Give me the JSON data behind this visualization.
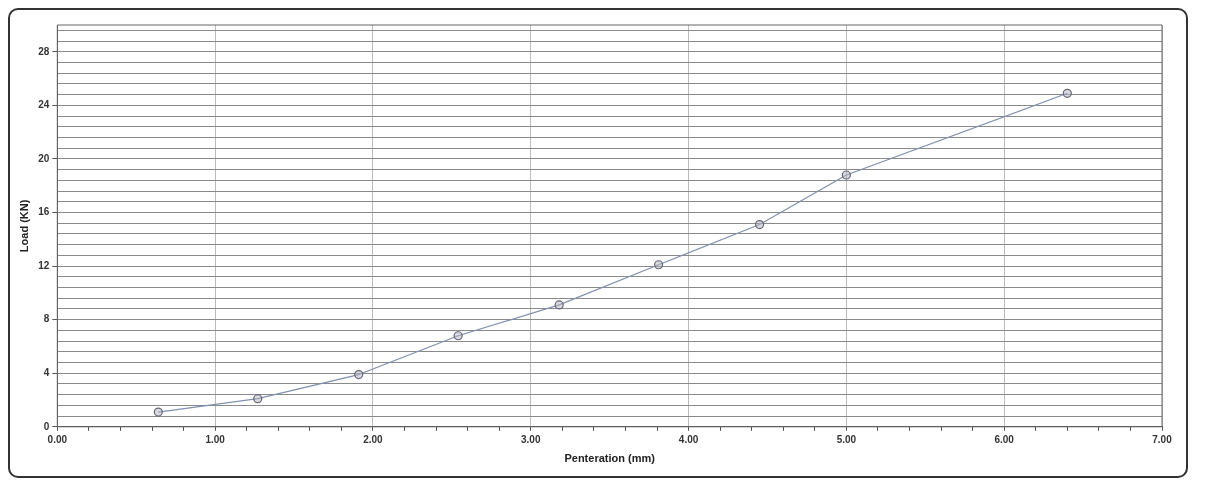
{
  "chart_data": {
    "type": "line",
    "xlabel": "Penteration (mm)",
    "ylabel": "Load (KN)",
    "x": [
      0.64,
      1.27,
      1.91,
      2.54,
      3.18,
      3.81,
      4.45,
      5.0,
      6.4
    ],
    "series": [
      {
        "color": "#7f8fb0",
        "values": [
          1.1,
          2.1,
          3.9,
          6.8,
          9.1,
          12.1,
          15.1,
          18.8,
          24.9
        ]
      }
    ],
    "xlim": [
      0,
      7
    ],
    "xticks": [
      {
        "value": 0,
        "label": "0.00"
      },
      {
        "value": 0.2,
        "label": null
      },
      {
        "value": 0.4,
        "label": null
      },
      {
        "value": 0.6,
        "label": null
      },
      {
        "value": 0.8,
        "label": null
      },
      {
        "value": 1,
        "label": "1.00"
      },
      {
        "value": 1.2,
        "label": null
      },
      {
        "value": 1.4,
        "label": null
      },
      {
        "value": 1.6,
        "label": null
      },
      {
        "value": 1.8,
        "label": null
      },
      {
        "value": 2,
        "label": "2.00"
      },
      {
        "value": 2.2,
        "label": null
      },
      {
        "value": 2.4,
        "label": null
      },
      {
        "value": 2.6,
        "label": null
      },
      {
        "value": 2.8,
        "label": null
      },
      {
        "value": 3,
        "label": "3.00"
      },
      {
        "value": 3.2,
        "label": null
      },
      {
        "value": 3.4,
        "label": null
      },
      {
        "value": 3.6,
        "label": null
      },
      {
        "value": 3.8,
        "label": null
      },
      {
        "value": 4,
        "label": "4.00"
      },
      {
        "value": 4.2,
        "label": null
      },
      {
        "value": 4.4,
        "label": null
      },
      {
        "value": 4.6,
        "label": null
      },
      {
        "value": 4.8,
        "label": null
      },
      {
        "value": 5,
        "label": "5.00"
      },
      {
        "value": 5.2,
        "label": null
      },
      {
        "value": 5.4,
        "label": null
      },
      {
        "value": 5.6,
        "label": null
      },
      {
        "value": 5.8,
        "label": null
      },
      {
        "value": 6,
        "label": "6.00"
      },
      {
        "value": 6.2,
        "label": null
      },
      {
        "value": 6.4,
        "label": null
      },
      {
        "value": 6.6,
        "label": null
      },
      {
        "value": 6.8,
        "label": null
      },
      {
        "value": 7,
        "label": "7.00"
      }
    ],
    "ylim": [
      0,
      30
    ],
    "yticks": [
      0,
      {
        "value": 0.8,
        "label": null
      },
      {
        "value": 1.6,
        "label": null
      },
      {
        "value": 2.4,
        "label": null
      },
      {
        "value": 3.2,
        "label": null
      },
      4,
      {
        "value": 4.8,
        "label": null
      },
      {
        "value": 5.6,
        "label": null
      },
      {
        "value": 6.4,
        "label": null
      },
      {
        "value": 7.2,
        "label": null
      },
      8,
      {
        "value": 8.8,
        "label": null
      },
      {
        "value": 9.6,
        "label": null
      },
      {
        "value": 10.4,
        "label": null
      },
      {
        "value": 11.2,
        "label": null
      },
      12,
      {
        "value": 12.8,
        "label": null
      },
      {
        "value": 13.6,
        "label": null
      },
      {
        "value": 14.4,
        "label": null
      },
      {
        "value": 15.2,
        "label": null
      },
      16,
      {
        "value": 16.8,
        "label": null
      },
      {
        "value": 17.6,
        "label": null
      },
      {
        "value": 18.4,
        "label": null
      },
      {
        "value": 19.2,
        "label": null
      },
      20,
      {
        "value": 20.8,
        "label": null
      },
      {
        "value": 21.6,
        "label": null
      },
      {
        "value": 22.4,
        "label": null
      },
      {
        "value": 23.2,
        "label": null
      },
      24,
      {
        "value": 24.8,
        "label": null
      },
      {
        "value": 25.6,
        "label": null
      },
      {
        "value": 26.4,
        "label": null
      },
      {
        "value": 27.2,
        "label": null
      },
      28,
      {
        "value": 28.8,
        "label": null
      },
      {
        "value": 29.6,
        "label": null
      }
    ],
    "grid": true,
    "marker": "circle",
    "line_style": "solid",
    "legend": false
  }
}
